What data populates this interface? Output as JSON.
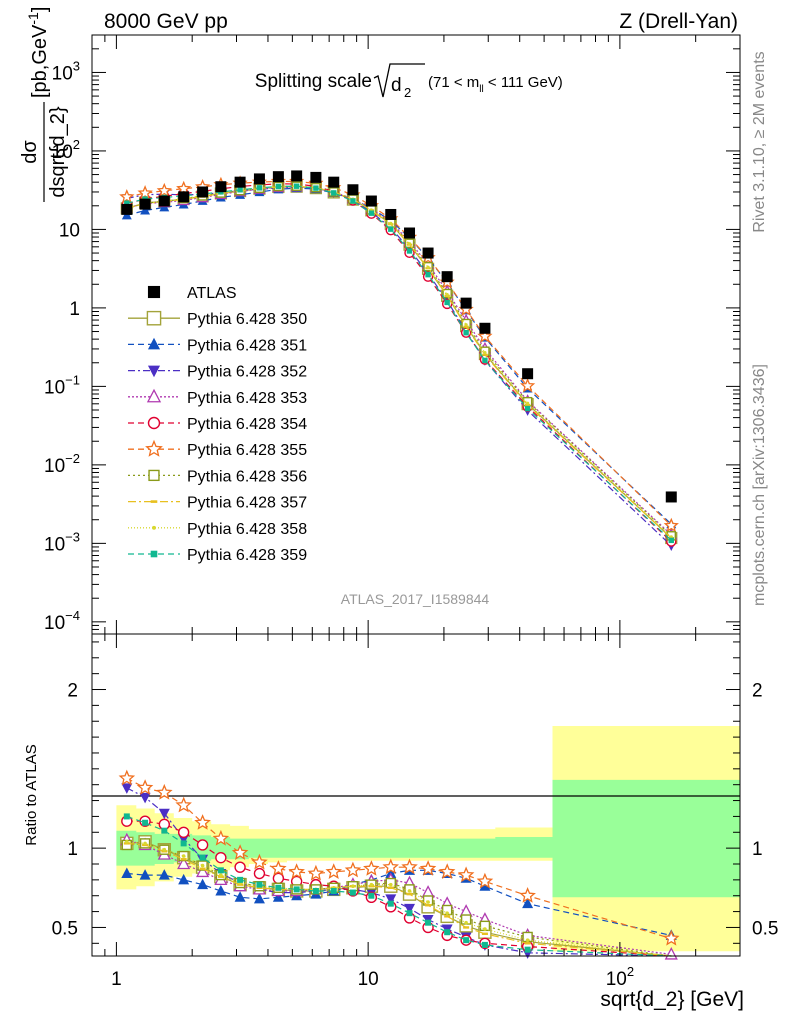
{
  "header": {
    "left": "8000 GeV pp",
    "right": "Z (Drell-Yan)"
  },
  "side_labels": {
    "rivet": "Rivet 3.1.10, ≥ 2M events",
    "mcplots": "mcplots.cern.ch [arXiv:1306.3436]"
  },
  "chart_data": {
    "type": "line",
    "title_main": "Splitting scale",
    "title_sym": "d",
    "title_sub": "2",
    "title_range": "(71 < m",
    "title_range_sub": "ll",
    "title_range_end": " < 111 GeV)",
    "analysis": "ATLAS_2017_I1589844",
    "xlabel": "sqrt{d_2} [GeV]",
    "ylabel_num": "dσ",
    "ylabel_den": "dsqrt{d_2}",
    "ylabel_unit": "[pb,GeV",
    "ylabel_unit_exp": "-1",
    "ylabel_unit_end": "]",
    "ratio_ylabel": "Ratio to ATLAS",
    "x_scale": "log",
    "y_scale": "log",
    "xlim": [
      0.8,
      300
    ],
    "ylim": [
      7e-05,
      3000
    ],
    "ratio_ylim": [
      0.32,
      2.35
    ],
    "x_ticks": [
      {
        "value": 1,
        "base": "1",
        "exp": ""
      },
      {
        "value": 10,
        "base": "10",
        "exp": ""
      },
      {
        "value": 100,
        "base": "10",
        "exp": "2"
      }
    ],
    "y_ticks": [
      {
        "value": 0.0001,
        "base": "10",
        "exp": "−4"
      },
      {
        "value": 0.001,
        "base": "10",
        "exp": "−3"
      },
      {
        "value": 0.01,
        "base": "10",
        "exp": "−2"
      },
      {
        "value": 0.1,
        "base": "10",
        "exp": "−1"
      },
      {
        "value": 1,
        "base": "1",
        "exp": ""
      },
      {
        "value": 10,
        "base": "10",
        "exp": ""
      },
      {
        "value": 100,
        "base": "10",
        "exp": "2"
      },
      {
        "value": 1000,
        "base": "10",
        "exp": "3"
      }
    ],
    "ratio_ticks": [
      {
        "value": 0.5,
        "label": "0.5"
      },
      {
        "value": 1,
        "label": "1"
      },
      {
        "value": 2,
        "label": "2"
      }
    ],
    "x": [
      1.1,
      1.3,
      1.55,
      1.85,
      2.2,
      2.6,
      3.1,
      3.7,
      4.4,
      5.2,
      6.2,
      7.3,
      8.7,
      10.3,
      12.3,
      14.6,
      17.3,
      20.6,
      24.5,
      29.1,
      43,
      160
    ],
    "bin_edges": [
      1.0,
      1.2,
      1.42,
      1.69,
      2.0,
      2.38,
      2.83,
      3.36,
      4.0,
      4.76,
      5.66,
      6.73,
      8.0,
      9.51,
      11.3,
      13.45,
      16.0,
      19.0,
      22.6,
      26.9,
      32.0,
      54.0,
      300
    ],
    "atlas": [
      18,
      21,
      23,
      26,
      30,
      35,
      40,
      44,
      47,
      48,
      46,
      40,
      32,
      23,
      15.5,
      9.0,
      5.0,
      2.5,
      1.15,
      0.55,
      0.145,
      0.0039
    ],
    "band_inner": [
      [
        0.89,
        1.11
      ],
      [
        0.89,
        1.1
      ],
      [
        0.9,
        1.09
      ],
      [
        0.91,
        1.09
      ],
      [
        0.92,
        1.08
      ],
      [
        0.93,
        1.07
      ],
      [
        0.93,
        1.06
      ],
      [
        0.94,
        1.06
      ],
      [
        0.94,
        1.06
      ],
      [
        0.94,
        1.06
      ],
      [
        0.94,
        1.06
      ],
      [
        0.94,
        1.06
      ],
      [
        0.94,
        1.06
      ],
      [
        0.94,
        1.06
      ],
      [
        0.94,
        1.06
      ],
      [
        0.94,
        1.06
      ],
      [
        0.94,
        1.06
      ],
      [
        0.94,
        1.06
      ],
      [
        0.94,
        1.06
      ],
      [
        0.94,
        1.06
      ],
      [
        0.94,
        1.07
      ],
      [
        0.69,
        1.43
      ]
    ],
    "band_outer": [
      [
        0.74,
        1.27
      ],
      [
        0.76,
        1.25
      ],
      [
        0.79,
        1.22
      ],
      [
        0.82,
        1.19
      ],
      [
        0.84,
        1.17
      ],
      [
        0.86,
        1.15
      ],
      [
        0.88,
        1.14
      ],
      [
        0.9,
        1.12
      ],
      [
        0.91,
        1.12
      ],
      [
        0.92,
        1.12
      ],
      [
        0.92,
        1.12
      ],
      [
        0.92,
        1.12
      ],
      [
        0.92,
        1.12
      ],
      [
        0.92,
        1.12
      ],
      [
        0.92,
        1.12
      ],
      [
        0.92,
        1.12
      ],
      [
        0.92,
        1.12
      ],
      [
        0.92,
        1.12
      ],
      [
        0.92,
        1.12
      ],
      [
        0.92,
        1.12
      ],
      [
        0.92,
        1.13
      ],
      [
        0.35,
        1.77
      ]
    ],
    "series": [
      {
        "name": "ATLAS",
        "color": "#000000",
        "marker": "square-filled",
        "dash": "none",
        "is_data": true
      },
      {
        "name": "Pythia 6.428 350",
        "color": "#a3a33a",
        "marker": "square-open",
        "dash": "solid",
        "ratio": [
          1.03,
          1.04,
          0.99,
          0.94,
          0.88,
          0.82,
          0.77,
          0.75,
          0.74,
          0.73,
          0.73,
          0.74,
          0.75,
          0.76,
          0.76,
          0.71,
          0.63,
          0.57,
          0.51,
          0.47,
          0.41,
          0.3
        ]
      },
      {
        "name": "Pythia 6.428 351",
        "color": "#1150c0",
        "marker": "triangle-up-filled",
        "dash": "6,4",
        "ratio": [
          0.84,
          0.83,
          0.83,
          0.8,
          0.77,
          0.73,
          0.69,
          0.68,
          0.69,
          0.7,
          0.71,
          0.73,
          0.77,
          0.8,
          0.84,
          0.86,
          0.86,
          0.84,
          0.81,
          0.76,
          0.65,
          0.45
        ]
      },
      {
        "name": "Pythia 6.428 352",
        "color": "#4b2fc4",
        "marker": "triangle-down-filled",
        "dash": "7,3,2,3",
        "ratio": [
          1.38,
          1.32,
          1.22,
          1.06,
          0.93,
          0.84,
          0.78,
          0.74,
          0.72,
          0.72,
          0.73,
          0.74,
          0.74,
          0.72,
          0.68,
          0.62,
          0.55,
          0.49,
          0.44,
          0.39,
          0.34,
          0.24
        ]
      },
      {
        "name": "Pythia 6.428 353",
        "color": "#b03ab0",
        "marker": "triangle-up-open",
        "dash": "2,2",
        "ratio": [
          1.05,
          1.02,
          0.96,
          0.9,
          0.85,
          0.8,
          0.76,
          0.74,
          0.73,
          0.73,
          0.74,
          0.75,
          0.77,
          0.79,
          0.8,
          0.78,
          0.72,
          0.65,
          0.6,
          0.55,
          0.45,
          0.33
        ]
      },
      {
        "name": "Pythia 6.428 354",
        "color": "#e00030",
        "marker": "circle-open",
        "dash": "6,4",
        "ratio": [
          1.17,
          1.17,
          1.15,
          1.1,
          1.02,
          0.94,
          0.88,
          0.84,
          0.81,
          0.79,
          0.77,
          0.76,
          0.73,
          0.69,
          0.63,
          0.56,
          0.5,
          0.45,
          0.42,
          0.4,
          0.38,
          0.27
        ]
      },
      {
        "name": "Pythia 6.428 355",
        "color": "#f07020",
        "marker": "star-open",
        "dash": "6,4",
        "ratio": [
          1.44,
          1.38,
          1.35,
          1.27,
          1.16,
          1.06,
          0.97,
          0.91,
          0.87,
          0.85,
          0.84,
          0.85,
          0.86,
          0.87,
          0.88,
          0.88,
          0.87,
          0.85,
          0.83,
          0.79,
          0.7,
          0.43
        ]
      },
      {
        "name": "Pythia 6.428 356",
        "color": "#8a9a1a",
        "marker": "square-open-small",
        "dash": "2,3",
        "ratio": [
          1.02,
          1.03,
          0.99,
          0.95,
          0.89,
          0.83,
          0.78,
          0.76,
          0.75,
          0.74,
          0.74,
          0.75,
          0.76,
          0.77,
          0.78,
          0.74,
          0.67,
          0.61,
          0.55,
          0.51,
          0.44,
          0.32
        ]
      },
      {
        "name": "Pythia 6.428 357",
        "color": "#e8c020",
        "marker": "dash-point",
        "dash": "8,3,2,3",
        "ratio": [
          1.03,
          1.02,
          0.98,
          0.93,
          0.87,
          0.82,
          0.77,
          0.75,
          0.74,
          0.74,
          0.74,
          0.75,
          0.76,
          0.76,
          0.75,
          0.71,
          0.64,
          0.57,
          0.5,
          0.46,
          0.4,
          0.3
        ]
      },
      {
        "name": "Pythia 6.428 358",
        "color": "#d8d830",
        "marker": "dot",
        "dash": "1,2",
        "ratio": [
          1.04,
          1.03,
          0.99,
          0.95,
          0.89,
          0.83,
          0.78,
          0.76,
          0.75,
          0.74,
          0.74,
          0.75,
          0.76,
          0.77,
          0.77,
          0.73,
          0.66,
          0.59,
          0.53,
          0.49,
          0.42,
          0.31
        ]
      },
      {
        "name": "Pythia 6.428 359",
        "color": "#10b890",
        "marker": "square-filled-small",
        "dash": "6,4",
        "ratio": [
          1.2,
          1.16,
          1.11,
          1.03,
          0.94,
          0.86,
          0.8,
          0.77,
          0.75,
          0.74,
          0.73,
          0.73,
          0.72,
          0.7,
          0.65,
          0.59,
          0.53,
          0.47,
          0.42,
          0.39,
          0.36,
          0.28
        ]
      }
    ]
  }
}
